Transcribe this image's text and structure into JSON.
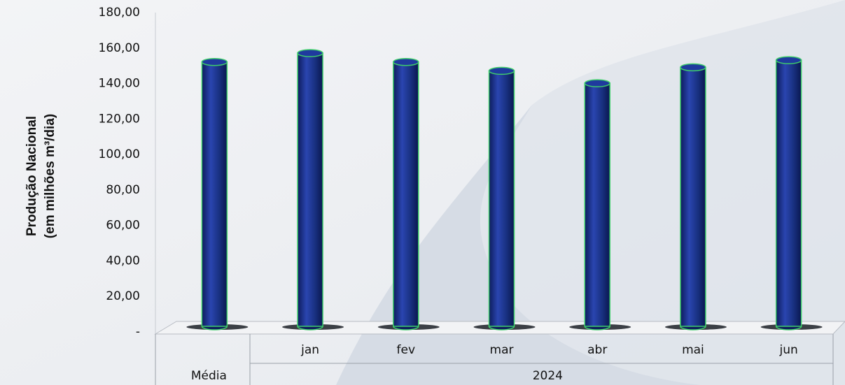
{
  "chart_data": {
    "type": "cylinder-bar",
    "y_axis_label": [
      "Produção Nacional",
      "(em milhões m³/dia)"
    ],
    "categories": [
      null,
      "jan",
      "fev",
      "mar",
      "abr",
      "mai",
      "jun"
    ],
    "x_groups": [
      {
        "label": "Média",
        "span": 1
      },
      {
        "label": "2024",
        "span": 6
      }
    ],
    "values": [
      149,
      154,
      149,
      144,
      137,
      146,
      150
    ],
    "color": "#1a2f86",
    "ylim": [
      0,
      180
    ],
    "yticks": [
      {
        "value": 0,
        "label": "-"
      },
      {
        "value": 20,
        "label": "20,00"
      },
      {
        "value": 40,
        "label": "40,00"
      },
      {
        "value": 60,
        "label": "60,00"
      },
      {
        "value": 80,
        "label": "80,00"
      },
      {
        "value": 100,
        "label": "100,00"
      },
      {
        "value": 120,
        "label": "120,00"
      },
      {
        "value": 140,
        "label": "140,00"
      },
      {
        "value": 160,
        "label": "160,00"
      },
      {
        "value": 180,
        "label": "180,00"
      }
    ]
  }
}
